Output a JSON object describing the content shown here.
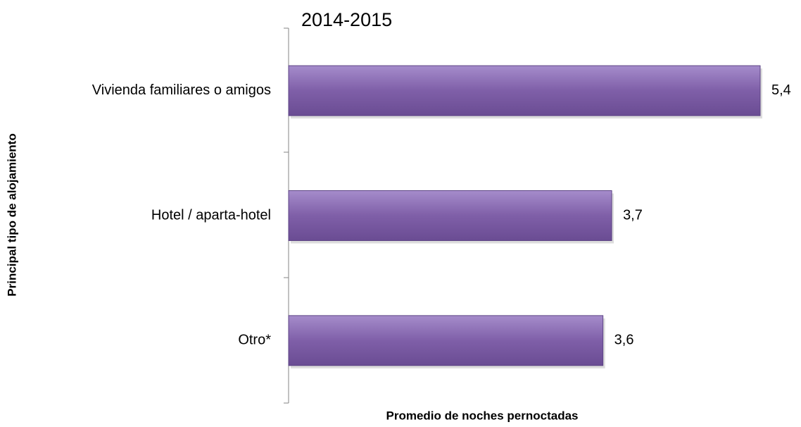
{
  "chart_data": {
    "type": "bar",
    "orientation": "horizontal",
    "title": "2014-2015",
    "categories": [
      "Vivienda familiares o amigos",
      "Hotel / aparta-hotel",
      "Otro*"
    ],
    "values": [
      5.4,
      3.7,
      3.6
    ],
    "value_labels": [
      "5,4",
      "3,7",
      "3,6"
    ],
    "color": "#7f5fa8",
    "x_label": "Promedio de noches pernoctadas",
    "y_label": "Principal tipo de alojamiento"
  }
}
